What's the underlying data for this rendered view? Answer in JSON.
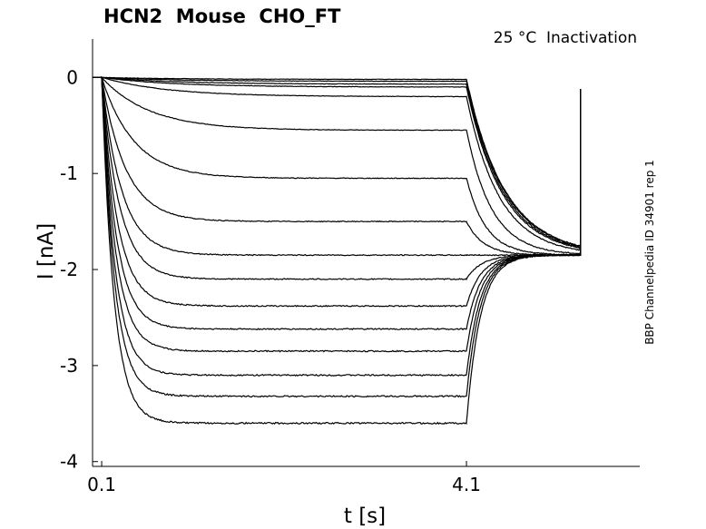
{
  "chart_data": {
    "type": "line",
    "title": "HCN2  Mouse  CHO_FT",
    "subtitle": "25 °C  Inactivation",
    "xlabel": "t [s]",
    "ylabel": "I [nA]",
    "side_label": "BBP Channelpedia ID 34901 rep 1",
    "xlim": [
      0,
      6
    ],
    "ylim": [
      -4.05,
      0.4
    ],
    "xticks": [
      {
        "v": 0.1,
        "label": "0.1"
      },
      {
        "v": 4.1,
        "label": "4.1"
      }
    ],
    "yticks": [
      {
        "v": 0,
        "label": "0"
      },
      {
        "v": -1,
        "label": "-1"
      },
      {
        "v": -2,
        "label": "-2"
      },
      {
        "v": -3,
        "label": "-3"
      },
      {
        "v": -4,
        "label": "-4"
      }
    ],
    "grid": false,
    "step_start": 0.1,
    "step_end": 4.1,
    "trace_end": 5.35,
    "tail_level": -1.85,
    "series_steady_state_nA": [
      -0.02,
      -0.04,
      -0.07,
      -0.1,
      -0.2,
      -0.55,
      -1.05,
      -1.5,
      -1.85,
      -2.1,
      -2.38,
      -2.62,
      -2.85,
      -3.1,
      -3.32,
      -3.6
    ]
  }
}
